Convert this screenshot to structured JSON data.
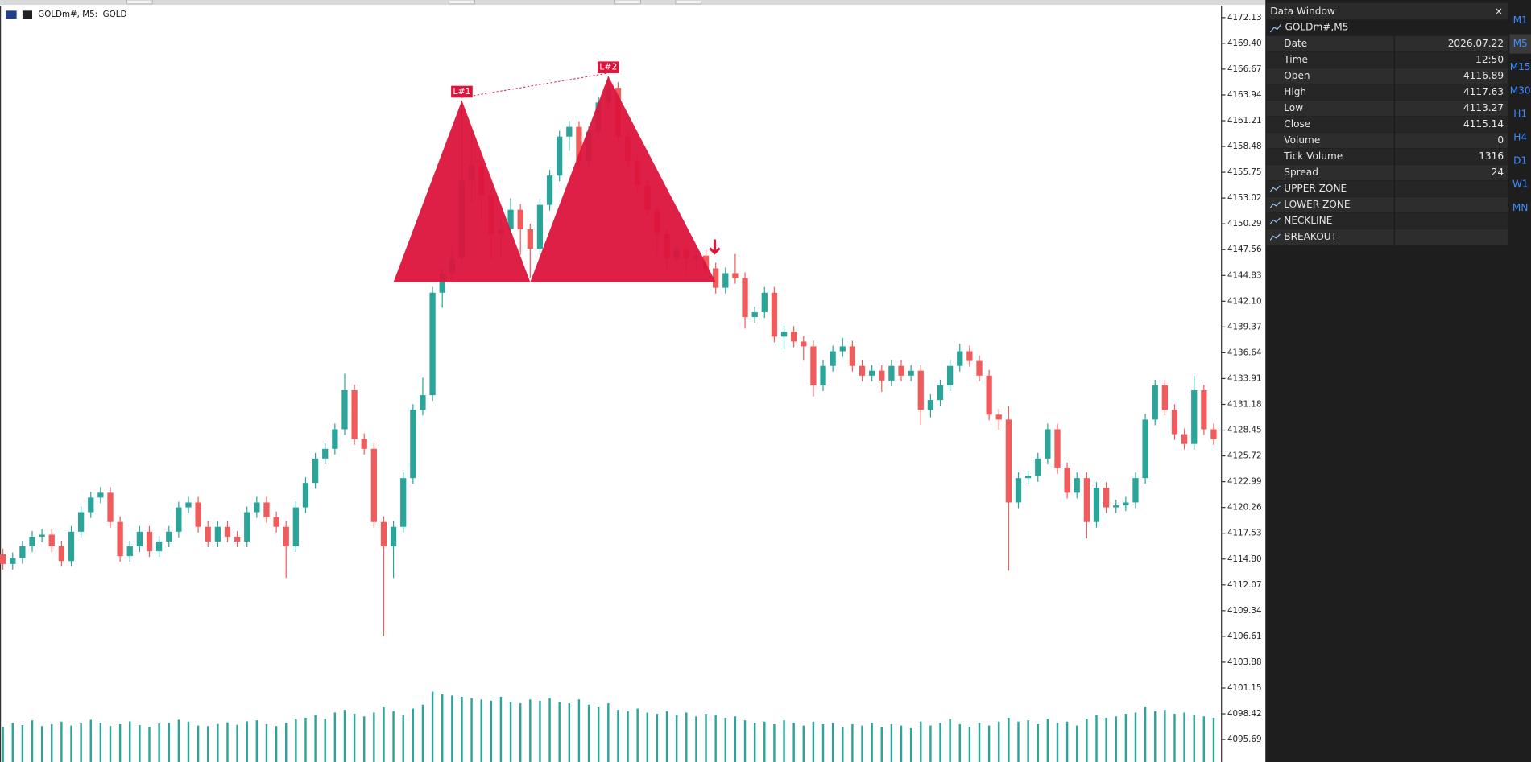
{
  "chart_header": "GOLDm#, M5:  GOLD",
  "chart_data": {
    "type": "candlestick",
    "open": [
      4115.3,
      4114.28,
      4114.9,
      4116.14,
      4117.17,
      4117.38,
      4116.14,
      4114.59,
      4117.69,
      4119.76,
      4121.31,
      4121.82,
      4118.72,
      4115.11,
      4116.14,
      4117.69,
      4115.62,
      4116.66,
      4117.69,
      4120.27,
      4120.79,
      4118.21,
      4116.66,
      4118.21,
      4117.17,
      4116.66,
      4119.76,
      4120.79,
      4119.24,
      4118.21,
      4116.14,
      4120.27,
      4122.86,
      4125.44,
      4126.47,
      4128.54,
      4132.67,
      4127.5,
      4126.47,
      4118.72,
      4116.14,
      4118.21,
      4123.37,
      4130.6,
      4132.15,
      4143.0,
      4145.07,
      4146.61,
      4154.88,
      4156.43,
      4153.33,
      4149.2,
      4149.71,
      4151.78,
      4149.71,
      4147.65,
      4152.3,
      4155.4,
      4159.53,
      4160.56,
      4156.94,
      4160.04,
      4163.14,
      4164.69,
      4159.53,
      4156.94,
      4154.36,
      4151.78,
      4149.2,
      4146.61,
      4147.65,
      4146.61,
      4146.92,
      4145.58,
      4143.52,
      4145.07,
      4144.55,
      4140.42,
      4140.93,
      4143.0,
      4138.35,
      4138.87,
      4137.83,
      4137.32,
      4133.19,
      4135.25,
      4136.8,
      4137.32,
      4135.25,
      4134.22,
      4134.74,
      4133.7,
      4135.25,
      4134.22,
      4134.74,
      4130.6,
      4131.64,
      4133.19,
      4135.25,
      4136.8,
      4135.77,
      4134.22,
      4130.09,
      4129.57,
      4120.79,
      4123.37,
      4123.58,
      4125.44,
      4128.54,
      4124.41,
      4121.82,
      4123.37,
      4118.72,
      4122.34,
      4120.27,
      4120.48,
      4120.79,
      4123.37,
      4129.57,
      4133.19,
      4130.6,
      4128.02,
      4126.99,
      4132.67,
      4128.54
    ],
    "high": [
      4115.9,
      4115.5,
      4116.74,
      4117.77,
      4117.98,
      4117.98,
      4116.74,
      4118.29,
      4120.36,
      4121.91,
      4122.42,
      4122.42,
      4119.32,
      4116.74,
      4118.29,
      4118.29,
      4117.26,
      4118.29,
      4120.87,
      4121.39,
      4121.39,
      4118.81,
      4118.81,
      4118.81,
      4117.77,
      4120.36,
      4121.39,
      4121.39,
      4119.84,
      4118.81,
      4120.87,
      4123.46,
      4126.04,
      4127.07,
      4129.14,
      4134.42,
      4133.27,
      4128.1,
      4127.07,
      4119.32,
      4118.81,
      4123.97,
      4131.2,
      4134.0,
      4143.6,
      4145.67,
      4148.0,
      4163.35,
      4160.0,
      4157.03,
      4153.93,
      4151.0,
      4153.0,
      4152.38,
      4150.31,
      4152.9,
      4156.0,
      4160.13,
      4161.16,
      4161.16,
      4160.64,
      4163.74,
      4165.93,
      4165.29,
      4160.13,
      4157.54,
      4154.96,
      4152.38,
      4149.8,
      4148.25,
      4148.25,
      4147.52,
      4147.52,
      4146.18,
      4145.67,
      4147.1,
      4145.15,
      4141.53,
      4143.6,
      4143.6,
      4139.47,
      4139.47,
      4138.43,
      4137.92,
      4135.85,
      4137.4,
      4138.2,
      4137.92,
      4135.85,
      4135.34,
      4135.34,
      4135.85,
      4135.85,
      4135.34,
      4135.34,
      4132.24,
      4133.79,
      4135.85,
      4137.6,
      4137.4,
      4136.37,
      4134.82,
      4130.69,
      4131.0,
      4123.97,
      4124.18,
      4126.04,
      4129.14,
      4129.14,
      4125.01,
      4123.97,
      4123.97,
      4122.94,
      4122.94,
      4121.08,
      4121.39,
      4123.97,
      4130.17,
      4133.79,
      4133.79,
      4131.2,
      4128.62,
      4134.2,
      4133.27,
      4129.14
    ],
    "low": [
      4113.68,
      4113.68,
      4114.3,
      4115.54,
      4116.57,
      4115.54,
      4113.99,
      4113.99,
      4117.09,
      4119.16,
      4120.71,
      4118.12,
      4114.51,
      4114.51,
      4115.54,
      4115.02,
      4115.02,
      4116.06,
      4117.09,
      4119.67,
      4117.61,
      4116.06,
      4116.06,
      4116.57,
      4116.06,
      4116.06,
      4119.16,
      4118.64,
      4117.61,
      4112.8,
      4115.54,
      4119.67,
      4122.26,
      4124.84,
      4125.87,
      4127.94,
      4126.9,
      4125.87,
      4118.12,
      4106.64,
      4112.8,
      4117.61,
      4122.77,
      4130.0,
      4131.55,
      4141.4,
      4144.47,
      4146.01,
      4152.5,
      4150.5,
      4146.5,
      4146.5,
      4149.11,
      4147.0,
      4144.6,
      4147.05,
      4151.7,
      4154.8,
      4158.0,
      4156.34,
      4156.34,
      4159.44,
      4162.54,
      4158.93,
      4156.34,
      4153.76,
      4151.18,
      4147.0,
      4145.2,
      4146.01,
      4145.0,
      4145.5,
      4144.98,
      4142.92,
      4142.92,
      4143.95,
      4139.2,
      4139.82,
      4140.33,
      4137.75,
      4137.0,
      4137.23,
      4135.8,
      4132.0,
      4132.59,
      4134.65,
      4136.2,
      4134.65,
      4133.62,
      4133.62,
      4132.5,
      4133.1,
      4133.62,
      4133.62,
      4129.0,
      4129.8,
      4131.04,
      4132.59,
      4134.65,
      4135.17,
      4133.62,
      4129.49,
      4128.5,
      4113.56,
      4120.19,
      4122.77,
      4122.98,
      4124.84,
      4123.81,
      4121.22,
      4121.22,
      4117.0,
      4118.12,
      4119.67,
      4119.67,
      4119.88,
      4120.19,
      4122.77,
      4128.97,
      4130.0,
      4127.42,
      4126.39,
      4126.39,
      4127.94,
      4126.9
    ],
    "close": [
      4114.28,
      4114.9,
      4116.14,
      4117.17,
      4117.38,
      4116.14,
      4114.59,
      4117.69,
      4119.76,
      4121.31,
      4121.82,
      4118.72,
      4115.11,
      4116.14,
      4117.69,
      4115.62,
      4116.66,
      4117.69,
      4120.27,
      4120.79,
      4118.21,
      4116.66,
      4118.21,
      4117.17,
      4116.66,
      4119.76,
      4120.79,
      4119.24,
      4118.21,
      4116.14,
      4120.27,
      4122.86,
      4125.44,
      4126.47,
      4128.54,
      4132.67,
      4127.5,
      4126.47,
      4118.72,
      4116.14,
      4118.21,
      4123.37,
      4130.6,
      4132.15,
      4143.0,
      4145.07,
      4146.61,
      4154.88,
      4156.43,
      4153.33,
      4149.2,
      4149.71,
      4151.78,
      4149.71,
      4147.65,
      4152.3,
      4155.4,
      4159.53,
      4160.56,
      4156.94,
      4160.04,
      4163.14,
      4164.69,
      4159.53,
      4156.94,
      4154.36,
      4151.78,
      4149.2,
      4146.61,
      4147.65,
      4146.61,
      4146.92,
      4145.58,
      4143.52,
      4145.07,
      4144.55,
      4140.42,
      4140.93,
      4143.0,
      4138.35,
      4138.87,
      4137.83,
      4137.32,
      4133.19,
      4135.25,
      4136.8,
      4137.32,
      4135.25,
      4134.22,
      4134.74,
      4133.7,
      4135.25,
      4134.22,
      4134.74,
      4130.6,
      4131.64,
      4133.19,
      4135.25,
      4136.8,
      4135.77,
      4134.22,
      4130.09,
      4129.57,
      4120.79,
      4123.37,
      4123.58,
      4125.44,
      4128.54,
      4124.41,
      4121.82,
      4123.37,
      4118.72,
      4122.34,
      4120.27,
      4120.48,
      4120.79,
      4123.37,
      4129.57,
      4133.19,
      4130.6,
      4128.02,
      4126.99,
      4132.67,
      4128.54,
      4127.5
    ],
    "volume": [
      1350,
      1500,
      1420,
      1600,
      1380,
      1450,
      1550,
      1400,
      1480,
      1620,
      1500,
      1380,
      1450,
      1560,
      1420,
      1350,
      1480,
      1500,
      1620,
      1550,
      1400,
      1380,
      1460,
      1520,
      1430,
      1560,
      1600,
      1450,
      1380,
      1500,
      1640,
      1700,
      1800,
      1650,
      1900,
      2000,
      1850,
      1750,
      1900,
      2100,
      1950,
      1800,
      2050,
      2200,
      2700,
      2600,
      2550,
      2500,
      2450,
      2400,
      2350,
      2500,
      2300,
      2250,
      2400,
      2350,
      2450,
      2300,
      2250,
      2400,
      2200,
      2100,
      2250,
      2000,
      1950,
      2050,
      1900,
      1850,
      1950,
      1800,
      1900,
      1750,
      1850,
      1800,
      1700,
      1750,
      1600,
      1500,
      1550,
      1450,
      1600,
      1500,
      1400,
      1550,
      1450,
      1500,
      1350,
      1450,
      1400,
      1500,
      1350,
      1450,
      1400,
      1300,
      1550,
      1400,
      1500,
      1650,
      1450,
      1350,
      1500,
      1400,
      1550,
      1700,
      1550,
      1600,
      1450,
      1650,
      1500,
      1550,
      1400,
      1650,
      1800,
      1700,
      1750,
      1850,
      1900,
      2100,
      1950,
      2000,
      1850,
      1900,
      1800,
      1750,
      1700
    ],
    "volume_ylim": [
      0,
      29000
    ],
    "ylim": [
      4093.31,
      4173.37
    ],
    "yticks": [
      4172.13,
      {
        "value": 4169.4,
        "label": "4169.40"
      },
      4166.67,
      4163.94,
      4161.21,
      4158.48,
      4155.75,
      4153.02,
      4150.29,
      4147.56,
      4144.83,
      {
        "value": 4142.1,
        "label": "4142.10"
      },
      4139.37,
      4136.64,
      4133.91,
      4131.18,
      4128.45,
      4125.72,
      4122.99,
      4120.26,
      4117.53,
      {
        "value": 4114.8,
        "label": "4114.80"
      },
      4112.07,
      4109.34,
      4106.61,
      4103.88,
      4101.15,
      4098.42,
      4095.69
    ],
    "up_color": "#2ba59a",
    "down_color": "#f05b5b",
    "volume_color": "#2ba59a",
    "pattern": {
      "color": "#dc143c",
      "neckline": 4144.13,
      "peaks": [
        {
          "label": "L#1",
          "index": 47,
          "price": 4163.35,
          "start": 40,
          "end": 54
        },
        {
          "label": "L#2",
          "index": 62,
          "price": 4165.93,
          "start": 54,
          "end": 73
        }
      ],
      "breakout": {
        "index": 73,
        "price": 4147.2
      }
    }
  },
  "data_window": {
    "title": "Data Window",
    "close": "×",
    "symbol": "GOLDm#,M5",
    "rows": [
      [
        "Date",
        "2026.07.22"
      ],
      [
        "Time",
        "12:50"
      ],
      [
        "Open",
        "4116.89"
      ],
      [
        "High",
        "4117.63"
      ],
      [
        "Low",
        "4113.27"
      ],
      [
        "Close",
        "4115.14"
      ],
      [
        "Volume",
        "0"
      ],
      [
        "Tick Volume",
        "1316"
      ],
      [
        "Spread",
        "24"
      ]
    ],
    "indicators": [
      "UPPER ZONE",
      "LOWER ZONE",
      "NECKLINE",
      "BREAKOUT"
    ]
  },
  "timeframes": [
    "M1",
    "M5",
    "M15",
    "M30",
    "H1",
    "H4",
    "D1",
    "W1",
    "MN"
  ],
  "active_timeframe": 1
}
